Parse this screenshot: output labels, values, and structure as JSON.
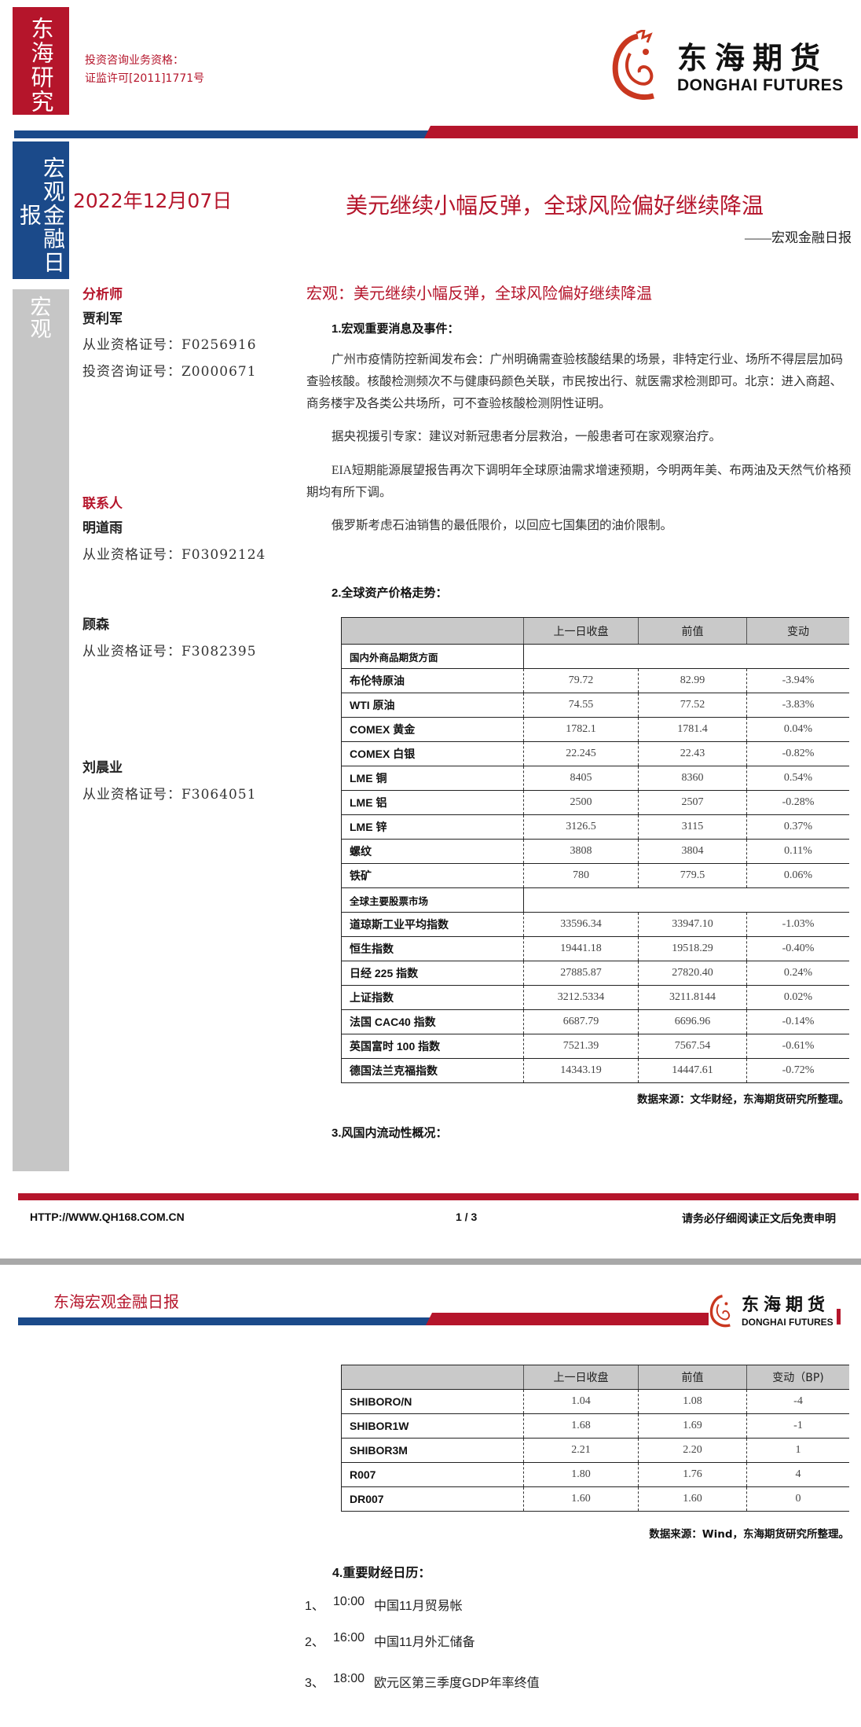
{
  "header": {
    "brand_tag": "东海研究",
    "qualification_line1": "投资咨询业务资格：",
    "qualification_line2": "证监许可[2011]1771号",
    "logo_cn": "东海期货",
    "logo_en": "DONGHAI FUTURES",
    "report_type_tag": "宏观金融日报",
    "date": "2022年12月07日",
    "title": "美元继续小幅反弹，全球风险偏好继续降温",
    "subtitle": "——宏观金融日报",
    "category_tag": "宏观"
  },
  "colors": {
    "brand_red": "#b5152b",
    "brand_blue": "#1b4a8a",
    "sidebar_gray": "#c6c6c6"
  },
  "analysts": {
    "analyst_heading": "分析师",
    "analyst": {
      "name": "贾利军",
      "cert1": "从业资格证号：F0256916",
      "cert2": "投资咨询证号：Z0000671"
    },
    "contact_heading": "联系人",
    "contacts": [
      {
        "name": "明道雨",
        "cert": "从业资格证号：F03092124"
      },
      {
        "name": "顾森",
        "cert": "从业资格证号：F3082395"
      },
      {
        "name": "刘晨业",
        "cert": "从业资格证号：F3064051"
      }
    ]
  },
  "main": {
    "headline": "宏观：美元继续小幅反弹，全球风险偏好继续降温",
    "section1": "1.宏观重要消息及事件：",
    "paragraphs": [
      "广州市疫情防控新闻发布会：广州明确需查验核酸结果的场景，非特定行业、场所不得层层加码查验核酸。核酸检测频次不与健康码颜色关联，市民按出行、就医需求检测即可。北京：进入商超、商务楼宇及各类公共场所，可不查验核酸检测阴性证明。",
      "据央视援引专家：建议对新冠患者分层救治，一般患者可在家观察治疗。",
      "EIA短期能源展望报告再次下调明年全球原油需求增速预期，今明两年美、布两油及天然气价格预期均有所下调。",
      "俄罗斯考虑石油销售的最低限价，以回应七国集团的油价限制。"
    ],
    "section2": "2.全球资产价格走势：",
    "table1": {
      "headers": [
        "",
        "上一日收盘",
        "前值",
        "变动"
      ],
      "sections": [
        {
          "title": "国内外商品期货方面",
          "rows": [
            [
              "布伦特原油",
              "79.72",
              "82.99",
              "-3.94%"
            ],
            [
              "WTI 原油",
              "74.55",
              "77.52",
              "-3.83%"
            ],
            [
              "COMEX 黄金",
              "1782.1",
              "1781.4",
              "0.04%"
            ],
            [
              "COMEX 白银",
              "22.245",
              "22.43",
              "-0.82%"
            ],
            [
              "LME 铜",
              "8405",
              "8360",
              "0.54%"
            ],
            [
              "LME 铝",
              "2500",
              "2507",
              "-0.28%"
            ],
            [
              "LME 锌",
              "3126.5",
              "3115",
              "0.37%"
            ],
            [
              "螺纹",
              "3808",
              "3804",
              "0.11%"
            ],
            [
              "铁矿",
              "780",
              "779.5",
              "0.06%"
            ]
          ]
        },
        {
          "title": "全球主要股票市场",
          "rows": [
            [
              "道琼斯工业平均指数",
              "33596.34",
              "33947.10",
              "-1.03%"
            ],
            [
              "恒生指数",
              "19441.18",
              "19518.29",
              "-0.40%"
            ],
            [
              "日经 225 指数",
              "27885.87",
              "27820.40",
              "0.24%"
            ],
            [
              "上证指数",
              "3212.5334",
              "3211.8144",
              "0.02%"
            ],
            [
              "法国 CAC40 指数",
              "6687.79",
              "6696.96",
              "-0.14%"
            ],
            [
              "英国富时 100 指数",
              "7521.39",
              "7567.54",
              "-0.61%"
            ],
            [
              "德国法兰克福指数",
              "14343.19",
              "14447.61",
              "-0.72%"
            ]
          ]
        }
      ]
    },
    "source1": "数据来源：文华财经，东海期货研究所整理。",
    "section3": "3.风国内流动性概况："
  },
  "footer": {
    "url": "HTTP://WWW.QH168.COM.CN",
    "page": "1 / 3",
    "disclaimer": "请务必仔细阅读正文后免责申明"
  },
  "page2": {
    "header_title": "东海宏观金融日报",
    "logo_cn": "东海期货",
    "logo_en": "DONGHAI FUTURES",
    "table2": {
      "headers": [
        "",
        "上一日收盘",
        "前值",
        "变动（BP)"
      ],
      "rows": [
        [
          "SHIBORO/N",
          "1.04",
          "1.08",
          "-4"
        ],
        [
          "SHIBOR1W",
          "1.68",
          "1.69",
          "-1"
        ],
        [
          "SHIBOR3M",
          "2.21",
          "2.20",
          "1"
        ],
        [
          "R007",
          "1.80",
          "1.76",
          "4"
        ],
        [
          "DR007",
          "1.60",
          "1.60",
          "0"
        ]
      ]
    },
    "source2": "数据来源：Wind，东海期货研究所整理。",
    "section4": "4.重要财经日历：",
    "calendar": [
      {
        "num": "1、",
        "time": "10:00",
        "event": "中国11月贸易帐"
      },
      {
        "num": "2、",
        "time": "16:00",
        "event": "中国11月外汇储备"
      },
      {
        "num": "3、",
        "time": "18:00",
        "event": "欧元区第三季度GDP年率终值"
      }
    ]
  }
}
